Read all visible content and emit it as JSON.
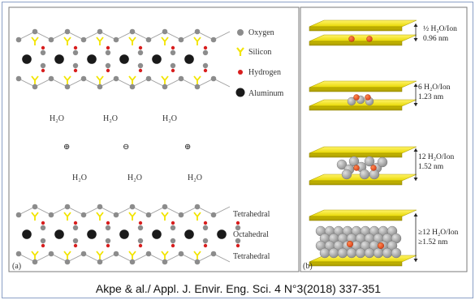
{
  "panel_a": {
    "label": "(a)",
    "legend": [
      {
        "name": "Oxygen",
        "symbol": "oxygen-icon",
        "color": "#8c8c8c"
      },
      {
        "name": "Silicon",
        "symbol": "silicon-icon",
        "color": "#f2e400"
      },
      {
        "name": "Hydrogen",
        "symbol": "hydrogen-icon",
        "color": "#d81e1e"
      },
      {
        "name": "Aluminum",
        "symbol": "aluminum-icon",
        "color": "#1a1a1a"
      }
    ],
    "water_top": [
      "H₂O",
      "H₂O",
      "H₂O"
    ],
    "cations": [
      "⊕",
      "⊖",
      "⊕"
    ],
    "water_bottom": [
      "H₂O",
      "H₂O",
      "H₂O"
    ],
    "layer_labels": [
      "Tetrahedral",
      "Octahedral",
      "Tetrahedral"
    ]
  },
  "panel_b": {
    "label": "(b)",
    "states": [
      {
        "line1": "½ H₂O/Ion",
        "line2": "0.96 nm"
      },
      {
        "line1": "6 H₂O/Ion",
        "line2": "1.23 nm"
      },
      {
        "line1": "12 H₂O/Ion",
        "line2": "1.52 nm"
      },
      {
        "line1": "≥12 H₂O/Ion",
        "line2": "≥1.52 nm"
      }
    ]
  },
  "colors": {
    "sheet_yellow": "#f2e400",
    "water_gray": "#a8a8a8",
    "ion_red": "#e8501e",
    "frame_blue": "#8a9fc6"
  },
  "caption": "Akpe & al./ Appl.  J. Envir. Eng. Sci. 4 N°3(2018) 337-351"
}
